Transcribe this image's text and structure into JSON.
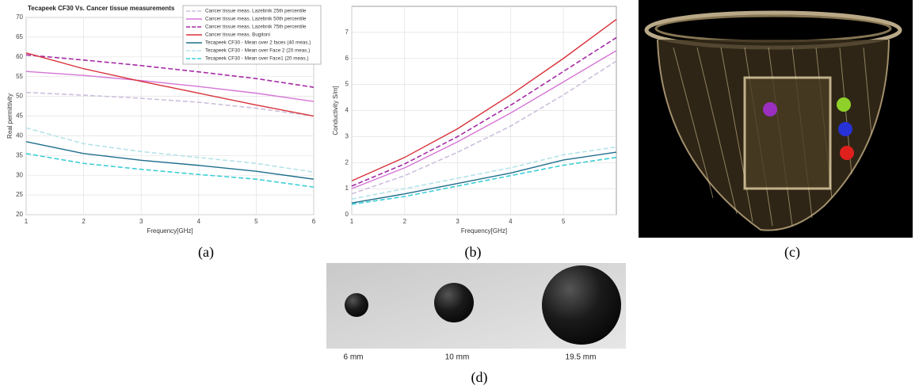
{
  "chart_data": [
    {
      "type": "line",
      "title": "Tecapeek CF30 Vs. Cancer tissue measurements",
      "x_label": "Frequency[GHz]",
      "y_label": "Real permittivity",
      "x": [
        1,
        2,
        3,
        4,
        5,
        6
      ],
      "xlim": [
        1,
        6
      ],
      "xticks": [
        1,
        2,
        3,
        4,
        5,
        6
      ],
      "ylim": [
        20,
        70
      ],
      "yticks": [
        20,
        25,
        30,
        35,
        40,
        45,
        50,
        55,
        60,
        65,
        70
      ],
      "grid": true,
      "legend": "upper right",
      "series": [
        {
          "name": "Cancer tissue meas. Lazebnik 25th percentile",
          "color": "#cdbfdc",
          "style": "dashed",
          "values": [
            51,
            50.3,
            49.5,
            48.5,
            47,
            45
          ]
        },
        {
          "name": "Cancer tissue meas. Lazebnik 50th percentile",
          "color": "#d575d5",
          "style": "solid",
          "values": [
            56.3,
            55.3,
            54,
            52.5,
            50.8,
            48.7
          ]
        },
        {
          "name": "Cancer tissue meas. Lazebnik 75th percentile",
          "color": "#a52aa5",
          "style": "dashed",
          "values": [
            60.5,
            59.2,
            57.8,
            56.2,
            54.5,
            52.3
          ]
        },
        {
          "name": "Cancer tissue meas. Bugitoni",
          "color": "#d8313a",
          "style": "solid",
          "values": [
            61,
            57,
            53.8,
            50.8,
            47.8,
            45
          ]
        },
        {
          "name": "Tecapeek CF30 - Mean over 2 faces (40 meas.)",
          "color": "#1f6e8c",
          "style": "solid",
          "values": [
            38.5,
            35.5,
            33.8,
            32.5,
            31,
            29
          ]
        },
        {
          "name": "Tecapeek CF30 - Mean over Face 2 (20 meas.)",
          "color": "#b5e3ea",
          "style": "dashed",
          "values": [
            42,
            38,
            36,
            34.5,
            33,
            30.8
          ]
        },
        {
          "name": "Tecapeek CF30 - Mean over Face1 (20 meas.)",
          "color": "#3ccfd6",
          "style": "dashed",
          "values": [
            35.5,
            33,
            31.5,
            30.2,
            29,
            27
          ]
        }
      ]
    },
    {
      "type": "line",
      "x_label": "Frequency[GHz]",
      "y_label": "Conductivity S/m]",
      "x": [
        1,
        2,
        3,
        4,
        5,
        6
      ],
      "xlim": [
        1,
        6
      ],
      "xticks": [
        1,
        2,
        3,
        4,
        5
      ],
      "ylim": [
        0,
        8
      ],
      "yticks": [
        0,
        1,
        2,
        3,
        4,
        5,
        6,
        7
      ],
      "grid": true,
      "series": [
        {
          "color": "#d8313a",
          "style": "solid",
          "values": [
            1.3,
            2.2,
            3.3,
            4.6,
            6.0,
            7.5
          ]
        },
        {
          "color": "#a52aa5",
          "style": "dashed",
          "values": [
            1.1,
            1.95,
            3.0,
            4.2,
            5.5,
            6.8
          ]
        },
        {
          "color": "#d575d5",
          "style": "solid",
          "values": [
            1.0,
            1.8,
            2.8,
            3.9,
            5.1,
            6.3
          ]
        },
        {
          "color": "#cdbfdc",
          "style": "dashed",
          "values": [
            0.8,
            1.5,
            2.4,
            3.4,
            4.6,
            5.9
          ]
        },
        {
          "color": "#b5e3ea",
          "style": "dashed",
          "values": [
            0.6,
            1.0,
            1.4,
            1.8,
            2.3,
            2.6
          ]
        },
        {
          "color": "#1f6e8c",
          "style": "solid",
          "values": [
            0.45,
            0.8,
            1.2,
            1.6,
            2.1,
            2.4
          ]
        },
        {
          "color": "#3ccfd6",
          "style": "dashed",
          "values": [
            0.4,
            0.7,
            1.1,
            1.5,
            1.9,
            2.2
          ]
        }
      ]
    }
  ],
  "captions": [
    "(a)",
    "(b)",
    "(c)",
    "(d)"
  ],
  "photo_labels": [
    "6 mm",
    "10 mm",
    "19.5 mm"
  ]
}
